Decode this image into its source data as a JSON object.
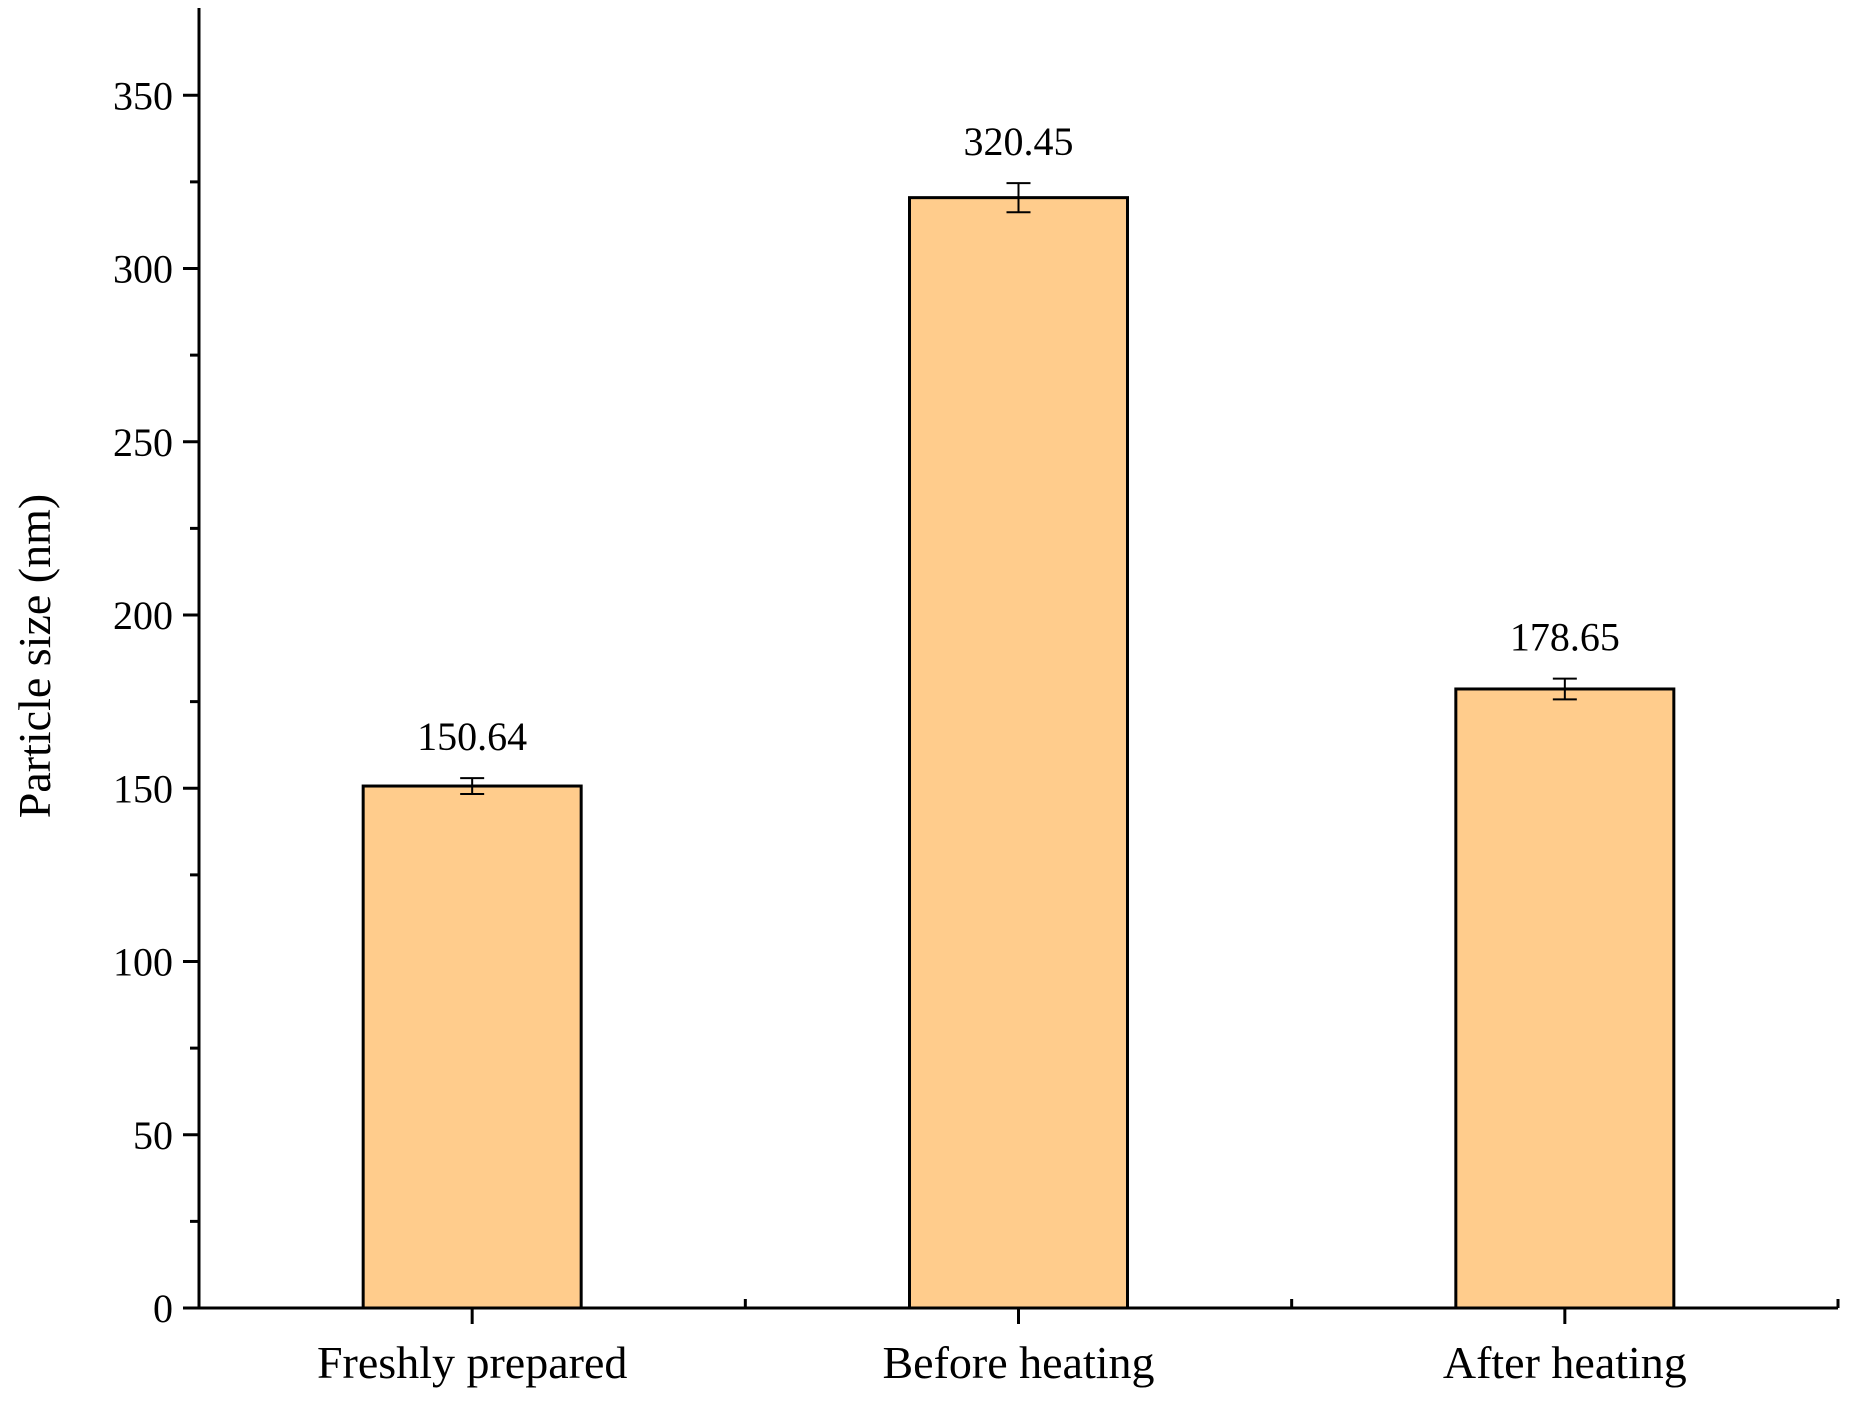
{
  "chart_data": {
    "type": "bar",
    "title": "",
    "xlabel": "",
    "ylabel": "Particle size (nm)",
    "categories": [
      "Freshly prepared",
      "Before heating",
      "After heating"
    ],
    "values": [
      150.64,
      320.45,
      178.65
    ],
    "errors": [
      2.3,
      4.2,
      3.0
    ],
    "data_labels": [
      "150.64",
      "320.45",
      "178.65"
    ],
    "ylim": [
      0,
      375
    ],
    "yticks": [
      0,
      50,
      100,
      150,
      200,
      250,
      300,
      350
    ],
    "ytick_labels": [
      "0",
      "50",
      "100",
      "150",
      "200",
      "250",
      "300",
      "350"
    ],
    "grid": false,
    "bar_color": "#FFCC8C",
    "bar_edge_color": "#000000"
  }
}
